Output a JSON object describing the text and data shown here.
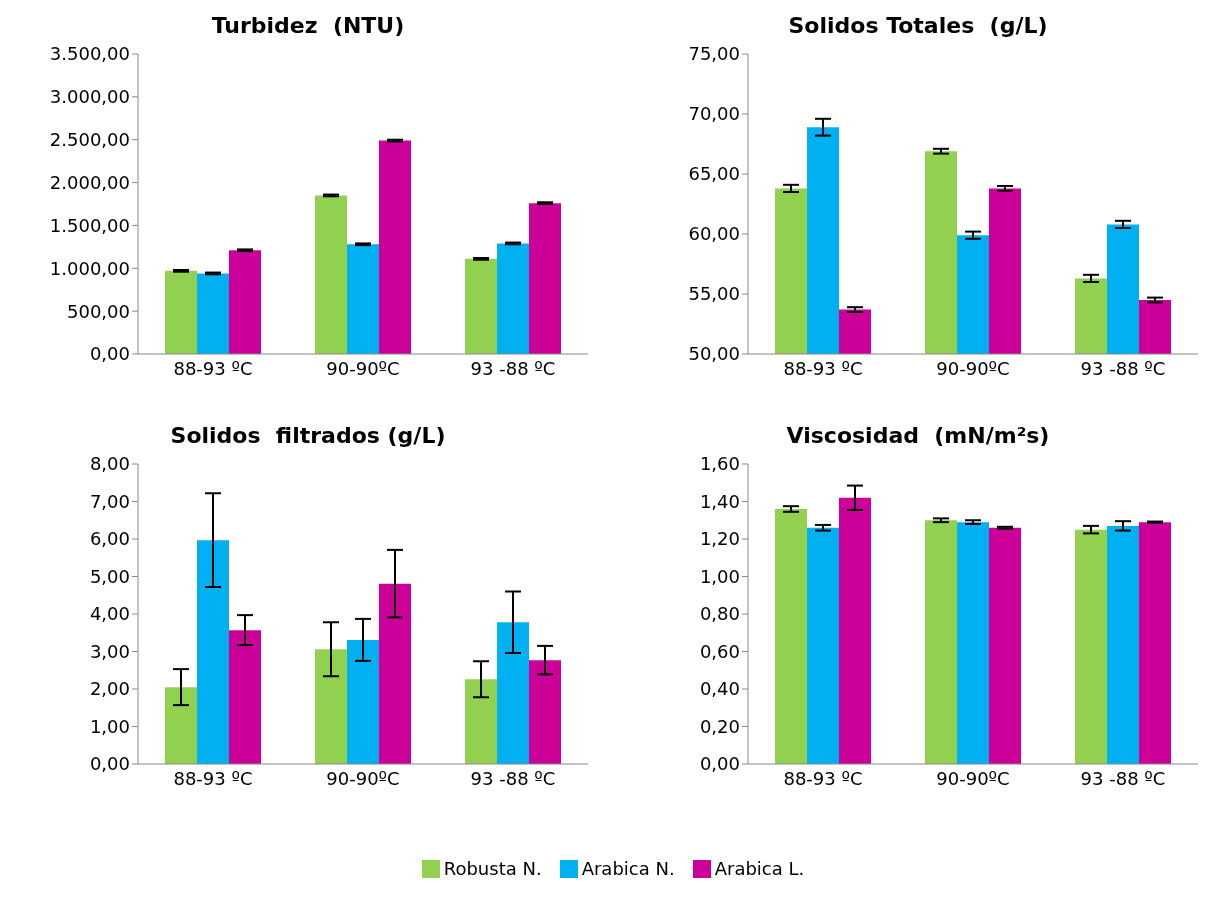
{
  "chart_data": [
    {
      "type": "bar",
      "title": "Turbidez  (NTU)",
      "categories": [
        "88-93 ºC",
        "90-90ºC",
        "93 -88 ºC"
      ],
      "series": [
        {
          "name": "Robusta N.",
          "color": "#92d050",
          "values": [
            970,
            1850,
            1110
          ],
          "errors": [
            10,
            10,
            10
          ]
        },
        {
          "name": "Arabica N.",
          "color": "#00b0f0",
          "values": [
            940,
            1280,
            1290
          ],
          "errors": [
            10,
            10,
            10
          ]
        },
        {
          "name": "Arabica L.",
          "color": "#cc0099",
          "values": [
            1210,
            2490,
            1760
          ],
          "errors": [
            10,
            10,
            10
          ]
        }
      ],
      "ylim": [
        0,
        3500
      ],
      "yticks": [
        {
          "value": 0,
          "label": "0,00"
        },
        {
          "value": 500,
          "label": "500,00"
        },
        {
          "value": 1000,
          "label": "1.000,00"
        },
        {
          "value": 1500,
          "label": "1.500,00"
        },
        {
          "value": 2000,
          "label": "2.000,00"
        },
        {
          "value": 2500,
          "label": "2.500,00"
        },
        {
          "value": 3000,
          "label": "3.000,00"
        },
        {
          "value": 3500,
          "label": "3.500,00"
        }
      ],
      "grid": false,
      "legend": "bottom"
    },
    {
      "type": "bar",
      "title": "Solidos Totales  (g/L)",
      "categories": [
        "88-93 ºC",
        "90-90ºC",
        "93 -88 ºC"
      ],
      "series": [
        {
          "color": "#92d050",
          "values": [
            63.8,
            66.9,
            56.3
          ],
          "errors": [
            0.3,
            0.2,
            0.3
          ]
        },
        {
          "color": "#00b0f0",
          "values": [
            68.9,
            59.9,
            60.8
          ],
          "errors": [
            0.7,
            0.3,
            0.3
          ]
        },
        {
          "color": "#cc0099",
          "values": [
            53.7,
            63.8,
            54.5
          ],
          "errors": [
            0.2,
            0.2,
            0.2
          ]
        }
      ],
      "ylim": [
        50,
        75
      ],
      "yticks": [
        {
          "value": 50,
          "label": "50,00"
        },
        {
          "value": 55,
          "label": "55,00"
        },
        {
          "value": 60,
          "label": "60,00"
        },
        {
          "value": 65,
          "label": "65,00"
        },
        {
          "value": 70,
          "label": "70,00"
        },
        {
          "value": 75,
          "label": "75,00"
        }
      ],
      "grid": false
    },
    {
      "type": "bar",
      "title": "Solidos  filtrados (g/L)",
      "categories": [
        "88-93 ºC",
        "90-90ºC",
        "93 -88 ºC"
      ],
      "series": [
        {
          "color": "#92d050",
          "values": [
            2.05,
            3.06,
            2.26
          ],
          "errors": [
            0.48,
            0.72,
            0.48
          ]
        },
        {
          "color": "#00b0f0",
          "values": [
            5.97,
            3.31,
            3.78
          ],
          "errors": [
            1.25,
            0.56,
            0.82
          ]
        },
        {
          "color": "#cc0099",
          "values": [
            3.57,
            4.81,
            2.77
          ],
          "errors": [
            0.4,
            0.9,
            0.38
          ]
        }
      ],
      "ylim": [
        0,
        8
      ],
      "yticks": [
        {
          "value": 0,
          "label": "0,00"
        },
        {
          "value": 1,
          "label": "1,00"
        },
        {
          "value": 2,
          "label": "2,00"
        },
        {
          "value": 3,
          "label": "3,00"
        },
        {
          "value": 4,
          "label": "4,00"
        },
        {
          "value": 5,
          "label": "5,00"
        },
        {
          "value": 6,
          "label": "6,00"
        },
        {
          "value": 7,
          "label": "7,00"
        },
        {
          "value": 8,
          "label": "8,00"
        }
      ],
      "grid": false
    },
    {
      "type": "bar",
      "title": "Viscosidad  (mN/m²s)",
      "categories": [
        "88-93 ºC",
        "90-90ºC",
        "93 -88 ºC"
      ],
      "series": [
        {
          "color": "#92d050",
          "values": [
            1.36,
            1.3,
            1.25
          ],
          "errors": [
            0.015,
            0.01,
            0.02
          ]
        },
        {
          "color": "#00b0f0",
          "values": [
            1.26,
            1.29,
            1.27
          ],
          "errors": [
            0.015,
            0.01,
            0.025
          ]
        },
        {
          "color": "#cc0099",
          "values": [
            1.42,
            1.26,
            1.29
          ],
          "errors": [
            0.065,
            0.005,
            0.003
          ]
        }
      ],
      "ylim": [
        0,
        1.6
      ],
      "yticks": [
        {
          "value": 0,
          "label": "0,00"
        },
        {
          "value": 0.2,
          "label": "0,20"
        },
        {
          "value": 0.4,
          "label": "0,40"
        },
        {
          "value": 0.6,
          "label": "0,60"
        },
        {
          "value": 0.8,
          "label": "0,80"
        },
        {
          "value": 1,
          "label": "1,00"
        },
        {
          "value": 1.2,
          "label": "1,20"
        },
        {
          "value": 1.4,
          "label": "1,40"
        },
        {
          "value": 1.6,
          "label": "1,60"
        }
      ],
      "grid": false
    }
  ]
}
